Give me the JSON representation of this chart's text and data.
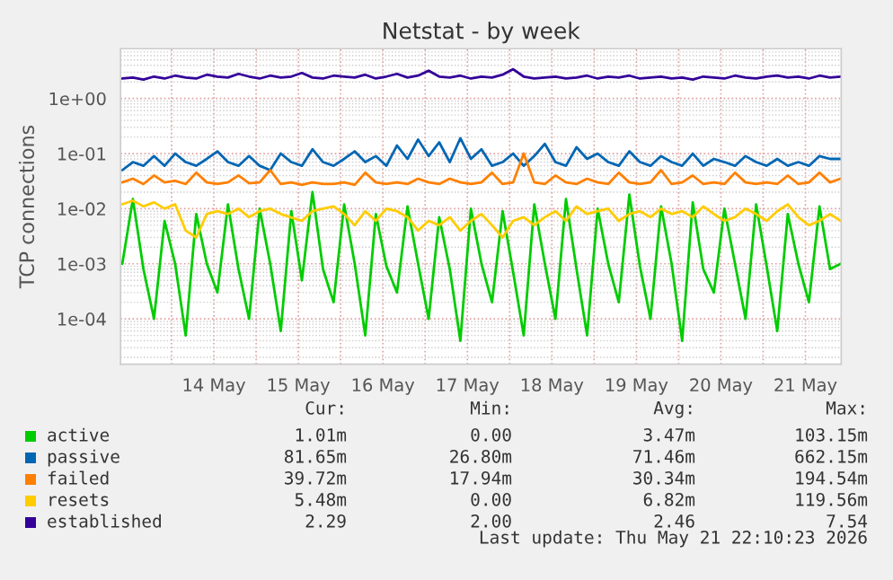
{
  "chart_data": {
    "type": "line",
    "title": "Netstat - by week",
    "ylabel": "TCP connections",
    "log": "y",
    "grid": true,
    "legend": "bottom",
    "marker": "none",
    "line_style": "solid",
    "ylim": [
      1.5e-05,
      8
    ],
    "yticks": [
      {
        "value": 0.0001,
        "label": "1e-04"
      },
      {
        "value": 0.001,
        "label": "1e-03"
      },
      {
        "value": 0.01,
        "label": "1e-02"
      },
      {
        "value": 0.1,
        "label": "1e-01"
      },
      {
        "value": 1,
        "label": "1e+00"
      }
    ],
    "xlim": [
      "2026-05-13T09:30",
      "2026-05-21T22:10"
    ],
    "xticks": [
      {
        "value": "2026-05-14T00:00",
        "label": null
      },
      {
        "value": "2026-05-14T12:00",
        "label": "14 May"
      },
      {
        "value": "2026-05-15T00:00",
        "label": null
      },
      {
        "value": "2026-05-15T12:00",
        "label": "15 May"
      },
      {
        "value": "2026-05-16T00:00",
        "label": null
      },
      {
        "value": "2026-05-16T12:00",
        "label": "16 May"
      },
      {
        "value": "2026-05-17T00:00",
        "label": null
      },
      {
        "value": "2026-05-17T12:00",
        "label": "17 May"
      },
      {
        "value": "2026-05-18T00:00",
        "label": null
      },
      {
        "value": "2026-05-18T12:00",
        "label": "18 May"
      },
      {
        "value": "2026-05-19T00:00",
        "label": null
      },
      {
        "value": "2026-05-19T12:00",
        "label": "19 May"
      },
      {
        "value": "2026-05-20T00:00",
        "label": null
      },
      {
        "value": "2026-05-20T12:00",
        "label": "20 May"
      },
      {
        "value": "2026-05-21T00:00",
        "label": null
      },
      {
        "value": "2026-05-21T12:00",
        "label": "21 May"
      }
    ],
    "x": [
      "2026-05-13T10:00",
      "2026-05-13T13:00",
      "2026-05-13T16:00",
      "2026-05-13T19:00",
      "2026-05-13T22:00",
      "2026-05-14T01:00",
      "2026-05-14T04:00",
      "2026-05-14T07:00",
      "2026-05-14T10:00",
      "2026-05-14T13:00",
      "2026-05-14T16:00",
      "2026-05-14T19:00",
      "2026-05-14T22:00",
      "2026-05-15T01:00",
      "2026-05-15T04:00",
      "2026-05-15T07:00",
      "2026-05-15T10:00",
      "2026-05-15T13:00",
      "2026-05-15T16:00",
      "2026-05-15T19:00",
      "2026-05-15T22:00",
      "2026-05-16T01:00",
      "2026-05-16T04:00",
      "2026-05-16T07:00",
      "2026-05-16T10:00",
      "2026-05-16T13:00",
      "2026-05-16T16:00",
      "2026-05-16T19:00",
      "2026-05-16T22:00",
      "2026-05-17T01:00",
      "2026-05-17T04:00",
      "2026-05-17T07:00",
      "2026-05-17T10:00",
      "2026-05-17T13:00",
      "2026-05-17T16:00",
      "2026-05-17T19:00",
      "2026-05-17T22:00",
      "2026-05-18T01:00",
      "2026-05-18T04:00",
      "2026-05-18T07:00",
      "2026-05-18T10:00",
      "2026-05-18T13:00",
      "2026-05-18T16:00",
      "2026-05-18T19:00",
      "2026-05-18T22:00",
      "2026-05-19T01:00",
      "2026-05-19T04:00",
      "2026-05-19T07:00",
      "2026-05-19T10:00",
      "2026-05-19T13:00",
      "2026-05-19T16:00",
      "2026-05-19T19:00",
      "2026-05-19T22:00",
      "2026-05-20T01:00",
      "2026-05-20T04:00",
      "2026-05-20T07:00",
      "2026-05-20T10:00",
      "2026-05-20T13:00",
      "2026-05-20T16:00",
      "2026-05-20T19:00",
      "2026-05-20T22:00",
      "2026-05-21T01:00",
      "2026-05-21T04:00",
      "2026-05-21T07:00",
      "2026-05-21T10:00",
      "2026-05-21T13:00",
      "2026-05-21T16:00",
      "2026-05-21T19:00",
      "2026-05-21T22:00"
    ],
    "series": [
      {
        "name": "active",
        "color": "#00cc00",
        "values": [
          0.001,
          0.015,
          0.0008,
          0.0001,
          0.006,
          0.001,
          5e-05,
          0.008,
          0.001,
          0.0003,
          0.012,
          0.0008,
          0.0001,
          0.01,
          0.001,
          6e-05,
          0.009,
          0.0005,
          0.02,
          0.0008,
          0.0002,
          0.012,
          0.001,
          5e-05,
          0.008,
          0.0009,
          0.0003,
          0.011,
          0.001,
          0.0001,
          0.007,
          0.0008,
          4e-05,
          0.01,
          0.001,
          0.0002,
          0.009,
          0.0007,
          5e-05,
          0.012,
          0.001,
          0.0001,
          0.015,
          0.0008,
          5e-05,
          0.01,
          0.001,
          0.0002,
          0.018,
          0.0009,
          0.0001,
          0.011,
          0.001,
          4e-05,
          0.013,
          0.0008,
          0.0003,
          0.01,
          0.001,
          0.0001,
          0.012,
          0.0009,
          6e-05,
          0.008,
          0.001,
          0.0002,
          0.011,
          0.0008,
          0.001
        ]
      },
      {
        "name": "passive",
        "color": "#0066b3",
        "values": [
          0.05,
          0.07,
          0.06,
          0.09,
          0.06,
          0.1,
          0.07,
          0.06,
          0.08,
          0.11,
          0.07,
          0.06,
          0.09,
          0.06,
          0.05,
          0.1,
          0.07,
          0.06,
          0.12,
          0.07,
          0.06,
          0.08,
          0.11,
          0.07,
          0.09,
          0.06,
          0.14,
          0.08,
          0.18,
          0.09,
          0.16,
          0.07,
          0.19,
          0.08,
          0.12,
          0.06,
          0.07,
          0.1,
          0.06,
          0.09,
          0.15,
          0.07,
          0.06,
          0.13,
          0.08,
          0.1,
          0.07,
          0.06,
          0.11,
          0.07,
          0.06,
          0.09,
          0.07,
          0.06,
          0.1,
          0.06,
          0.08,
          0.07,
          0.06,
          0.09,
          0.07,
          0.06,
          0.08,
          0.06,
          0.07,
          0.06,
          0.09,
          0.08,
          0.08
        ]
      },
      {
        "name": "failed",
        "color": "#ff8000",
        "values": [
          0.03,
          0.035,
          0.028,
          0.04,
          0.03,
          0.032,
          0.028,
          0.045,
          0.03,
          0.028,
          0.03,
          0.04,
          0.029,
          0.03,
          0.05,
          0.028,
          0.03,
          0.027,
          0.03,
          0.028,
          0.028,
          0.03,
          0.027,
          0.045,
          0.03,
          0.028,
          0.03,
          0.028,
          0.035,
          0.03,
          0.028,
          0.035,
          0.03,
          0.028,
          0.03,
          0.045,
          0.028,
          0.03,
          0.1,
          0.03,
          0.028,
          0.04,
          0.03,
          0.028,
          0.035,
          0.03,
          0.028,
          0.045,
          0.03,
          0.028,
          0.03,
          0.05,
          0.028,
          0.03,
          0.04,
          0.028,
          0.03,
          0.028,
          0.045,
          0.03,
          0.028,
          0.03,
          0.028,
          0.04,
          0.028,
          0.03,
          0.045,
          0.03,
          0.035
        ]
      },
      {
        "name": "resets",
        "color": "#ffcc00",
        "values": [
          0.012,
          0.014,
          0.011,
          0.013,
          0.01,
          0.012,
          0.004,
          0.003,
          0.008,
          0.009,
          0.008,
          0.01,
          0.007,
          0.009,
          0.01,
          0.008,
          null,
          0.006,
          0.009,
          0.01,
          0.011,
          0.008,
          0.005,
          0.009,
          0.006,
          0.01,
          0.009,
          0.007,
          0.004,
          0.006,
          0.005,
          0.007,
          0.004,
          0.006,
          0.008,
          0.005,
          0.003,
          0.006,
          0.007,
          0.005,
          0.007,
          0.009,
          0.006,
          0.011,
          0.008,
          0.009,
          0.01,
          0.006,
          0.008,
          0.009,
          0.007,
          0.01,
          0.008,
          0.009,
          0.007,
          0.011,
          0.008,
          0.006,
          0.007,
          0.01,
          0.008,
          0.006,
          0.009,
          0.012,
          0.007,
          0.005,
          0.006,
          0.008,
          0.006
        ]
      },
      {
        "name": "established",
        "color": "#330099",
        "values": [
          2.3,
          2.4,
          2.2,
          2.5,
          2.3,
          2.6,
          2.4,
          2.3,
          2.7,
          2.5,
          2.4,
          2.8,
          2.5,
          2.3,
          2.6,
          2.4,
          2.5,
          2.9,
          2.4,
          2.3,
          2.6,
          2.5,
          2.4,
          2.7,
          2.3,
          2.5,
          2.8,
          2.4,
          2.6,
          3.2,
          2.5,
          2.4,
          2.6,
          2.3,
          2.5,
          2.4,
          2.7,
          3.4,
          2.5,
          2.3,
          2.4,
          2.5,
          2.3,
          2.4,
          2.6,
          2.3,
          2.5,
          2.4,
          2.6,
          2.3,
          2.4,
          2.5,
          2.3,
          2.4,
          2.2,
          2.5,
          2.4,
          2.3,
          2.6,
          2.4,
          2.3,
          2.5,
          2.6,
          2.4,
          2.5,
          2.3,
          2.6,
          2.4,
          2.5
        ]
      }
    ],
    "annotations": [
      "Cur:",
      "Min:",
      "Avg:",
      "Max:",
      "1.01m",
      "0.00",
      "3.47m",
      "103.15m",
      "81.65m",
      "26.80m",
      "71.46m",
      "662.15m",
      "39.72m",
      "17.94m",
      "30.34m",
      "194.54m",
      "5.48m",
      "0.00",
      "6.82m",
      "119.56m",
      "2.29",
      "2.00",
      "2.46",
      "7.54",
      "Last update: Thu May 21 22:10:23 2026"
    ]
  }
}
